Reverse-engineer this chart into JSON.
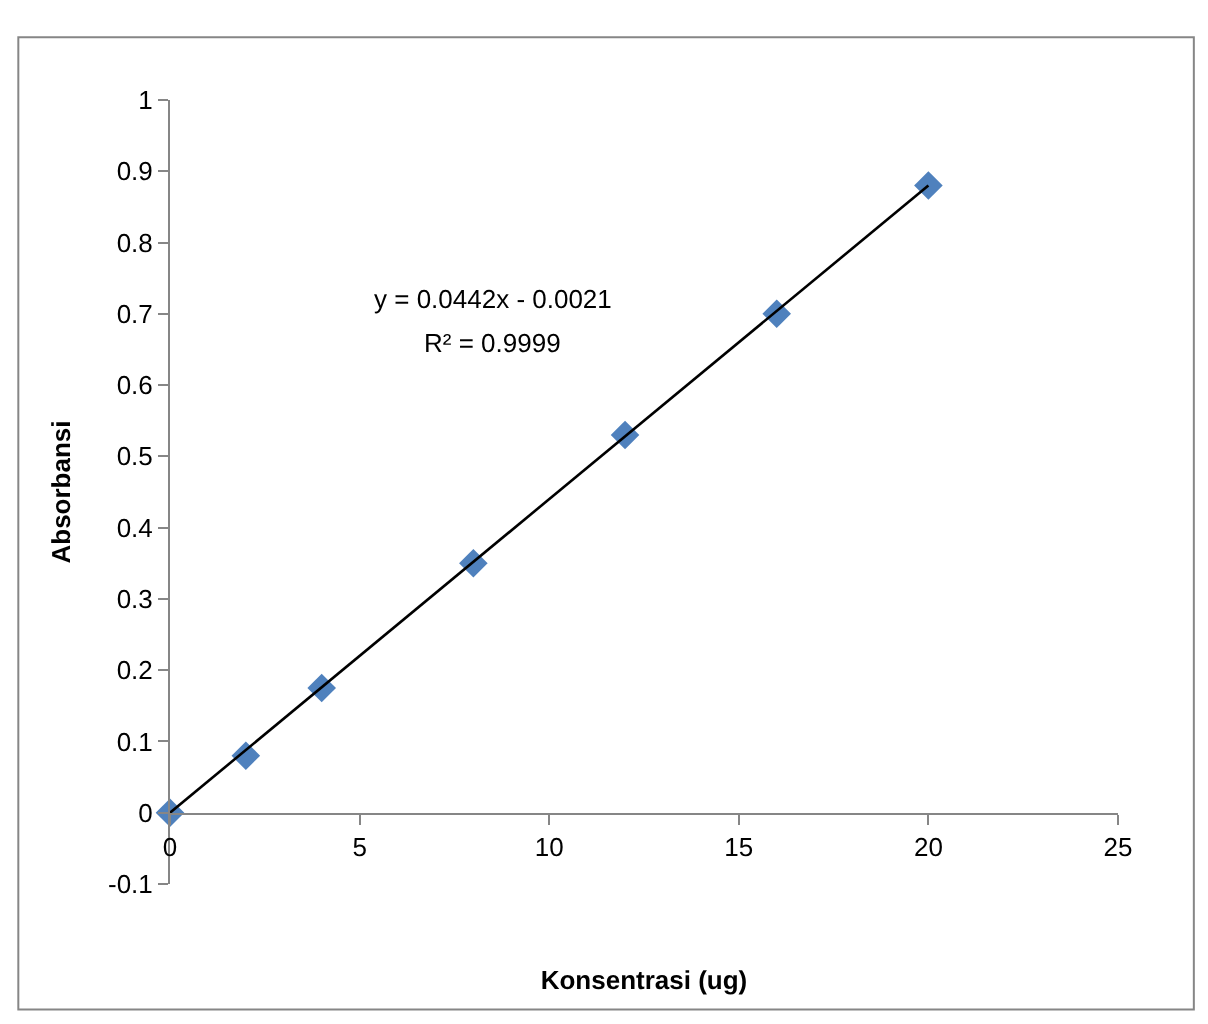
{
  "chart_data": {
    "type": "scatter",
    "xlabel": "Konsentrasi (ug)",
    "ylabel": "Absorbansi",
    "annotations": [
      "y = 0.0442x - 0.0021",
      "R² = 0.9999"
    ],
    "xlim": [
      0,
      25
    ],
    "xticks": [
      0,
      5,
      10,
      15,
      20,
      25
    ],
    "ylim": [
      -0.1,
      1
    ],
    "yticks": [
      -0.1,
      0,
      0.1,
      0.2,
      0.3,
      0.4,
      0.5,
      0.6,
      0.7,
      0.8,
      0.9,
      1
    ],
    "marker": "diamond",
    "series": [
      {
        "color": "#4f81bd",
        "x": [
          0,
          2,
          4,
          8,
          12,
          16,
          20
        ],
        "values": [
          0,
          0.08,
          0.175,
          0.35,
          0.53,
          0.7,
          0.88
        ]
      },
      {
        "type": "line",
        "color": "#000000",
        "line_style": "solid",
        "marker": "none",
        "x": [
          0,
          20
        ],
        "values": [
          0,
          0.88
        ]
      }
    ]
  }
}
